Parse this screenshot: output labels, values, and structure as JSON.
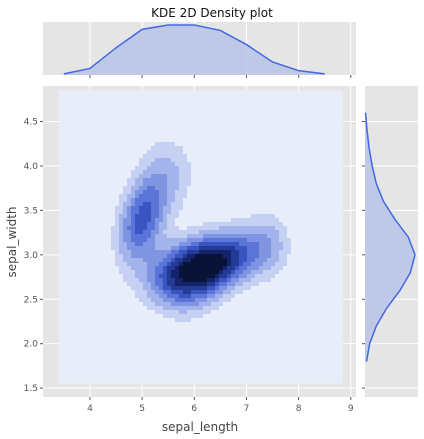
{
  "chart_data": {
    "type": "kde2d",
    "title": "KDE 2D Density plot",
    "xlabel": "sepal_length",
    "ylabel": "sepal_width",
    "xlim": [
      3.1,
      9.1
    ],
    "ylim": [
      1.4,
      4.9
    ],
    "xticks": [
      4,
      5,
      6,
      7,
      8,
      9
    ],
    "yticks": [
      1.5,
      2.0,
      2.5,
      3.0,
      3.5,
      4.0,
      4.5
    ],
    "grid": true,
    "style": "ggplot",
    "colors": {
      "background": "#e5e5e5",
      "grid": "#ffffff",
      "density_base": "#e8eef9",
      "marginal_line": "#4169e1",
      "marginal_fill": "#b9c4e8"
    },
    "density_levels": [
      {
        "level": 1,
        "color": "#c5d0f2"
      },
      {
        "level": 2,
        "color": "#a3b4ec"
      },
      {
        "level": 3,
        "color": "#7f95e2"
      },
      {
        "level": 4,
        "color": "#5a74d8"
      },
      {
        "level": 5,
        "color": "#3a55c2"
      },
      {
        "level": 6,
        "color": "#243b95"
      },
      {
        "level": 7,
        "color": "#15246a"
      },
      {
        "level": 8,
        "color": "#0b1238"
      }
    ],
    "density_modes": [
      {
        "x": 5.0,
        "y": 3.4
      },
      {
        "x": 6.3,
        "y": 2.9
      }
    ],
    "marginal_x": {
      "x": [
        3.5,
        4.0,
        4.5,
        5.0,
        5.5,
        6.0,
        6.5,
        7.0,
        7.5,
        8.0,
        8.5
      ],
      "density": [
        0.01,
        0.06,
        0.25,
        0.42,
        0.46,
        0.46,
        0.41,
        0.28,
        0.12,
        0.04,
        0.01
      ]
    },
    "marginal_y": {
      "y": [
        1.8,
        2.0,
        2.2,
        2.4,
        2.6,
        2.8,
        3.0,
        3.2,
        3.4,
        3.6,
        3.8,
        4.0,
        4.2,
        4.4,
        4.6
      ],
      "density": [
        0.03,
        0.09,
        0.22,
        0.42,
        0.68,
        0.88,
        0.97,
        0.84,
        0.58,
        0.36,
        0.22,
        0.14,
        0.08,
        0.04,
        0.01
      ]
    }
  }
}
